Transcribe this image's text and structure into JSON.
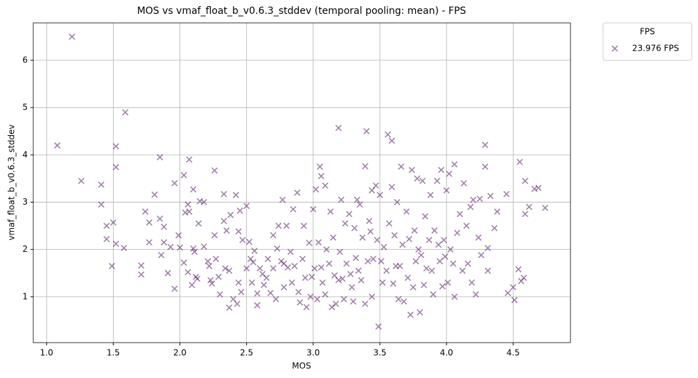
{
  "chart_data": {
    "type": "scatter",
    "title": "MOS vs vmaf_float_b_v0.6.3_stddev (temporal pooling: mean) - FPS",
    "x_label": "MOS",
    "y_label": "vmaf_float_b_v0.6.3_stddev",
    "xlim": [
      0.9,
      4.93
    ],
    "ylim": [
      0.03,
      6.79
    ],
    "xticks": [
      {
        "value": 1,
        "label": "1.0"
      },
      {
        "value": 1.5,
        "label": "1.5"
      },
      {
        "value": 2,
        "label": "2.0"
      },
      {
        "value": 2.5,
        "label": "2.5"
      },
      {
        "value": 3,
        "label": "3.0"
      },
      {
        "value": 3.5,
        "label": "3.5"
      },
      {
        "value": 4,
        "label": "4.0"
      },
      {
        "value": 4.5,
        "label": "4.5"
      }
    ],
    "yticks": [
      1,
      2,
      3,
      4,
      5,
      6
    ],
    "grid": true,
    "legend_title": "FPS",
    "legend": "outside upper right",
    "series": [
      {
        "name": "23.976 FPS",
        "color": "#440154",
        "alpha": 0.5,
        "marker": "x",
        "x": [
          1.08,
          1.19,
          1.26,
          1.41,
          1.41,
          1.45,
          1.45,
          1.49,
          1.5,
          1.52,
          1.52,
          1.52,
          1.59,
          1.58,
          1.71,
          1.71,
          1.74,
          1.77,
          1.77,
          1.81,
          1.85,
          1.85,
          1.86,
          1.88,
          1.88,
          1.91,
          1.93,
          1.96,
          1.96,
          1.99,
          2.0,
          2.03,
          2.03,
          2.04,
          2.07,
          2.06,
          2.06,
          2.07,
          2.09,
          2.1,
          2.1,
          2.11,
          2.12,
          2.13,
          2.14,
          2.15,
          2.18,
          2.18,
          2.21,
          2.22,
          2.23,
          2.24,
          2.26,
          2.26,
          2.27,
          2.29,
          2.3,
          2.33,
          2.33,
          2.34,
          2.35,
          2.37,
          2.37,
          2.38,
          2.4,
          2.42,
          2.43,
          2.44,
          2.44,
          2.45,
          2.46,
          2.47,
          2.5,
          2.5,
          2.52,
          2.53,
          2.54,
          2.55,
          2.56,
          2.58,
          2.58,
          2.6,
          2.62,
          2.63,
          2.65,
          2.66,
          2.68,
          2.7,
          2.7,
          2.72,
          2.73,
          2.74,
          2.76,
          2.77,
          2.78,
          2.78,
          2.8,
          2.81,
          2.83,
          2.84,
          2.85,
          2.86,
          2.88,
          2.89,
          2.9,
          2.92,
          2.93,
          2.94,
          2.95,
          2.97,
          2.98,
          2.99,
          3.0,
          3.01,
          3.02,
          3.03,
          3.04,
          3.05,
          3.06,
          3.06,
          3.07,
          3.09,
          3.09,
          3.1,
          3.12,
          3.13,
          3.14,
          3.15,
          3.16,
          3.17,
          3.19,
          3.19,
          3.2,
          3.21,
          3.22,
          3.23,
          3.24,
          3.25,
          3.27,
          3.28,
          3.29,
          3.3,
          3.31,
          3.32,
          3.33,
          3.34,
          3.35,
          3.36,
          3.37,
          3.39,
          3.39,
          3.4,
          3.41,
          3.42,
          3.43,
          3.44,
          3.44,
          3.45,
          3.47,
          3.48,
          3.49,
          3.5,
          3.51,
          3.52,
          3.53,
          3.55,
          3.56,
          3.57,
          3.59,
          3.59,
          3.6,
          3.61,
          3.62,
          3.63,
          3.64,
          3.65,
          3.66,
          3.67,
          3.68,
          3.7,
          3.71,
          3.72,
          3.73,
          3.74,
          3.75,
          3.76,
          3.77,
          3.78,
          3.79,
          3.8,
          3.81,
          3.82,
          3.83,
          3.84,
          3.85,
          3.87,
          3.88,
          3.89,
          3.9,
          3.91,
          3.93,
          3.94,
          3.95,
          3.96,
          3.97,
          3.98,
          3.99,
          4.0,
          4.01,
          4.02,
          4.03,
          4.05,
          4.06,
          4.06,
          4.08,
          4.1,
          4.12,
          4.13,
          4.15,
          4.16,
          4.18,
          4.19,
          4.2,
          4.22,
          4.24,
          4.25,
          4.26,
          4.29,
          4.29,
          4.31,
          4.31,
          4.33,
          4.36,
          4.38,
          4.45,
          4.46,
          4.5,
          4.51,
          4.54,
          4.55,
          4.56,
          4.58,
          4.59,
          4.59,
          4.62,
          4.66,
          4.69,
          4.74
        ],
        "values": [
          4.2,
          6.5,
          3.45,
          3.37,
          2.95,
          2.5,
          2.22,
          1.65,
          2.57,
          4.18,
          3.74,
          2.12,
          4.9,
          2.03,
          1.66,
          1.47,
          2.8,
          2.57,
          2.15,
          3.16,
          3.95,
          2.65,
          1.88,
          2.48,
          2.15,
          1.5,
          2.05,
          3.4,
          1.17,
          2.3,
          2.04,
          3.57,
          1.72,
          2.78,
          3.9,
          2.95,
          1.52,
          2.8,
          1.25,
          3.27,
          2.02,
          1.95,
          1.42,
          1.38,
          2.55,
          3.02,
          3.0,
          2.06,
          1.75,
          1.65,
          1.35,
          1.28,
          3.67,
          2.3,
          1.8,
          1.42,
          1.05,
          3.17,
          2.6,
          1.6,
          2.4,
          1.55,
          0.77,
          2.73,
          0.95,
          3.15,
          0.85,
          2.38,
          1.3,
          2.82,
          1.1,
          2.2,
          2.92,
          1.6,
          2.16,
          1.8,
          1.3,
          1.73,
          1.97,
          1.07,
          0.82,
          1.6,
          1.48,
          1.25,
          1.4,
          1.8,
          1.08,
          2.3,
          1.6,
          0.95,
          2.02,
          2.5,
          1.75,
          3.05,
          1.7,
          1.2,
          2.5,
          1.62,
          1.95,
          1.3,
          2.85,
          1.65,
          3.2,
          1.1,
          0.88,
          1.8,
          2.5,
          1.4,
          0.78,
          2.14,
          1.0,
          1.42,
          2.85,
          1.6,
          3.27,
          0.95,
          2.15,
          3.75,
          3.55,
          1.62,
          1.3,
          3.35,
          1.05,
          2.0,
          1.7,
          2.8,
          0.78,
          2.25,
          1.45,
          0.85,
          4.57,
          1.35,
          1.95,
          3.05,
          1.38,
          0.95,
          2.55,
          1.7,
          2.75,
          1.48,
          1.2,
          0.9,
          2.45,
          1.82,
          3.05,
          1.55,
          2.95,
          1.35,
          2.25,
          3.76,
          0.85,
          4.5,
          1.75,
          2.6,
          2.38,
          3.25,
          1.0,
          1.8,
          3.35,
          2.2,
          0.37,
          3.15,
          1.75,
          1.3,
          2.05,
          1.55,
          4.43,
          2.55,
          4.3,
          3.32,
          1.28,
          2.3,
          1.65,
          3.0,
          0.95,
          1.65,
          3.75,
          2.1,
          0.9,
          2.8,
          1.4,
          2.22,
          0.62,
          3.68,
          1.2,
          2.4,
          1.75,
          3.5,
          2.0,
          0.67,
          1.88,
          3.45,
          1.25,
          2.7,
          1.6,
          2.2,
          3.15,
          1.55,
          1.05,
          2.4,
          3.45,
          2.1,
          1.75,
          3.68,
          1.22,
          2.2,
          1.85,
          3.25,
          1.3,
          3.6,
          2.0,
          1.7,
          3.8,
          1.0,
          2.35,
          2.75,
          1.55,
          3.4,
          2.5,
          1.7,
          2.9,
          1.3,
          3.05,
          1.05,
          2.25,
          3.07,
          1.88,
          4.21,
          3.75,
          2.03,
          1.55,
          3.13,
          2.45,
          2.8,
          3.17,
          1.08,
          1.2,
          0.93,
          1.58,
          3.85,
          1.33,
          1.4,
          3.45,
          2.75,
          2.9,
          3.28,
          3.3,
          2.88
        ]
      }
    ]
  }
}
